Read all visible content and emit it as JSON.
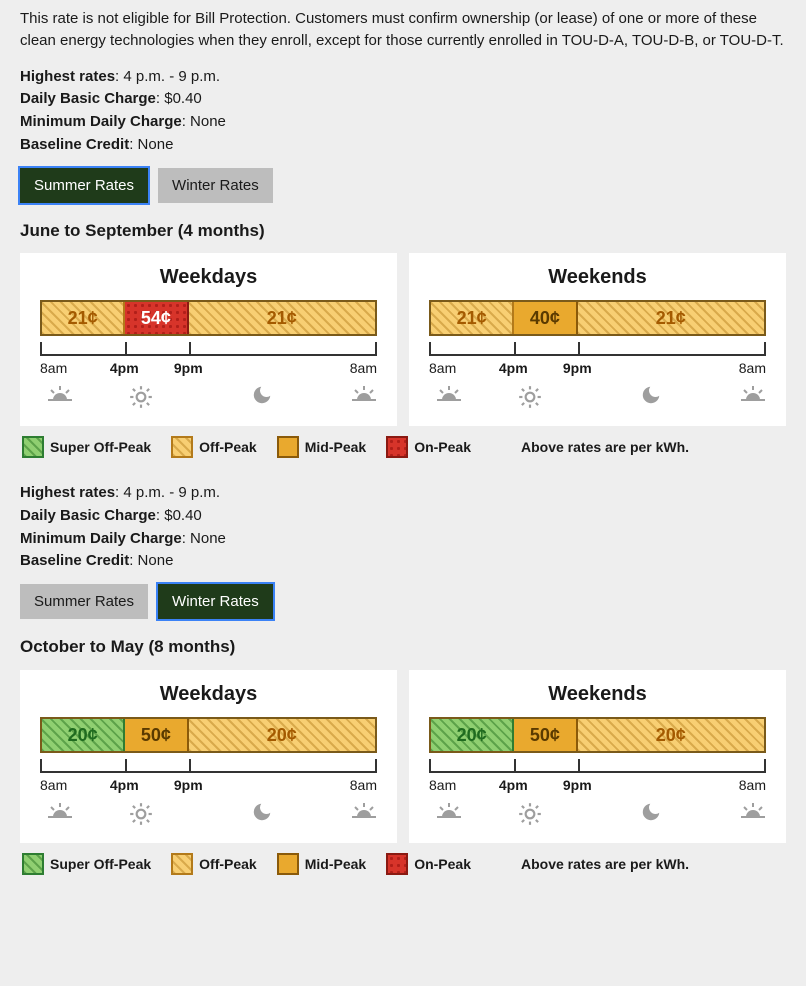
{
  "intro": "This rate is not eligible for Bill Protection. Customers must confirm ownership (or lease) of one or more of these clean energy technologies when they enroll, except for those currently enrolled in TOU-D-A, TOU-D-B, or TOU-D-T.",
  "facts": {
    "highest_label": "Highest rates",
    "highest_value": "4 p.m. - 9 p.m.",
    "basic_label": "Daily Basic Charge",
    "basic_value": "$0.40",
    "min_label": "Minimum Daily Charge",
    "min_value": "None",
    "baseline_label": "Baseline Credit",
    "baseline_value": "None"
  },
  "tabs": {
    "summer": "Summer Rates",
    "winter": "Winter Rates"
  },
  "legend": {
    "super": "Super Off-Peak",
    "off": "Off-Peak",
    "mid": "Mid-Peak",
    "on": "On-Peak",
    "note": "Above rates are per kWh."
  },
  "colors": {
    "super_bg": "#8fcf71",
    "off_bg": "#f8cf73",
    "mid_bg": "#e9a92e",
    "on_bg": "#d7342a",
    "panel_bg": "#ffffff",
    "page_bg": "#eeeeee",
    "tab_active_bg": "#1f3b1a",
    "tab_inactive_bg": "#bdbdbd"
  },
  "axis": {
    "labels": [
      "8am",
      "4pm",
      "9pm",
      "8am"
    ],
    "positions_pct": [
      0,
      25,
      44,
      100
    ],
    "bold": [
      false,
      true,
      true,
      false
    ],
    "tick_positions_pct": [
      25,
      44
    ],
    "icon_positions_pct": [
      6,
      30,
      66,
      96
    ],
    "icons": [
      "sunrise",
      "sun",
      "moon",
      "sunrise"
    ]
  },
  "sections": [
    {
      "active_tab": "summer",
      "show_intro": true,
      "period": "June to September (4 months)",
      "panels": [
        {
          "title": "Weekdays",
          "segments": [
            {
              "price": "21¢",
              "type": "off",
              "width_pct": 25
            },
            {
              "price": "54¢",
              "type": "on",
              "width_pct": 19
            },
            {
              "price": "21¢",
              "type": "off",
              "width_pct": 56
            }
          ]
        },
        {
          "title": "Weekends",
          "segments": [
            {
              "price": "21¢",
              "type": "off",
              "width_pct": 25
            },
            {
              "price": "40¢",
              "type": "mid",
              "width_pct": 19
            },
            {
              "price": "21¢",
              "type": "off",
              "width_pct": 56
            }
          ]
        }
      ]
    },
    {
      "active_tab": "winter",
      "show_intro": false,
      "period": "October to May (8 months)",
      "panels": [
        {
          "title": "Weekdays",
          "segments": [
            {
              "price": "20¢",
              "type": "super",
              "width_pct": 25
            },
            {
              "price": "50¢",
              "type": "mid",
              "width_pct": 19
            },
            {
              "price": "20¢",
              "type": "off",
              "width_pct": 56
            }
          ]
        },
        {
          "title": "Weekends",
          "segments": [
            {
              "price": "20¢",
              "type": "super",
              "width_pct": 25
            },
            {
              "price": "50¢",
              "type": "mid",
              "width_pct": 19
            },
            {
              "price": "20¢",
              "type": "off",
              "width_pct": 56
            }
          ]
        }
      ]
    }
  ]
}
